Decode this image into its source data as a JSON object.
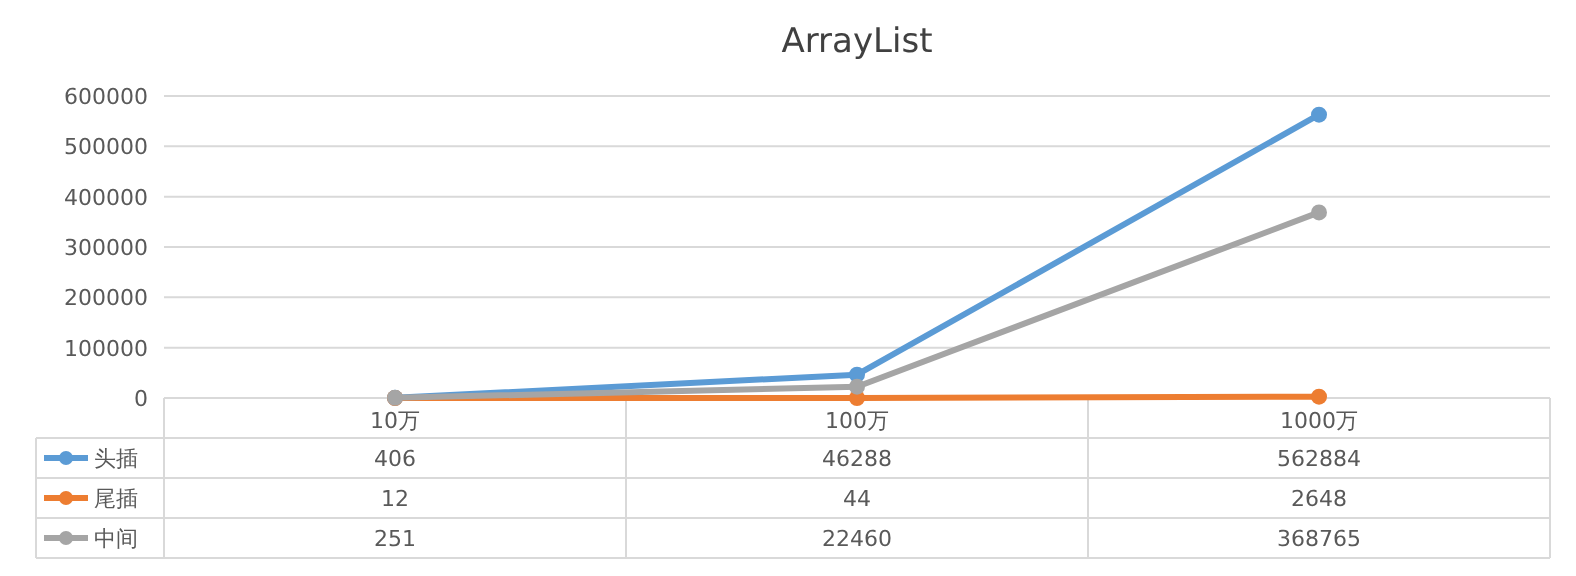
{
  "chart_data": {
    "type": "line",
    "title": "ArrayList",
    "categories": [
      "10万",
      "100万",
      "1000万"
    ],
    "series": [
      {
        "name": "头插",
        "color": "#5b9bd5",
        "values": [
          406,
          46288,
          562884
        ]
      },
      {
        "name": "尾插",
        "color": "#ed7d31",
        "values": [
          12,
          44,
          2648
        ]
      },
      {
        "name": "中间",
        "color": "#a5a5a5",
        "values": [
          251,
          22460,
          368765
        ]
      }
    ],
    "ylim": [
      0,
      600000
    ],
    "yticks": [
      0,
      100000,
      200000,
      300000,
      400000,
      500000,
      600000
    ],
    "grid": "y",
    "marker": "circle",
    "line_style": "solid",
    "data_labels": true,
    "legend": "bottom"
  }
}
